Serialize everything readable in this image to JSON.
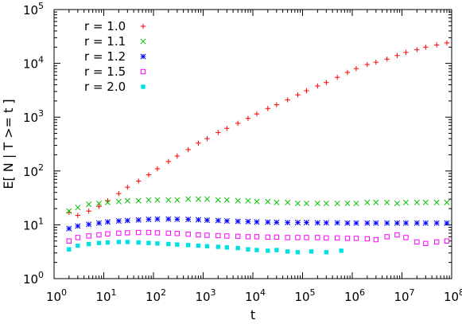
{
  "chart_data": {
    "type": "scatter",
    "title": "",
    "xlabel": "t",
    "ylabel": "E[ N | T >= t ]",
    "x_scale": "log",
    "y_scale": "log",
    "xlim": [
      1,
      100000000
    ],
    "ylim": [
      1,
      100000
    ],
    "x_ticks": [
      {
        "value": 1,
        "base": "10",
        "exp": "0"
      },
      {
        "value": 10,
        "base": "10",
        "exp": "1"
      },
      {
        "value": 100,
        "base": "10",
        "exp": "2"
      },
      {
        "value": 1000,
        "base": "10",
        "exp": "3"
      },
      {
        "value": 10000,
        "base": "10",
        "exp": "4"
      },
      {
        "value": 100000,
        "base": "10",
        "exp": "5"
      },
      {
        "value": 1000000,
        "base": "10",
        "exp": "6"
      },
      {
        "value": 10000000,
        "base": "10",
        "exp": "7"
      },
      {
        "value": 100000000,
        "base": "10",
        "exp": "8"
      }
    ],
    "y_ticks": [
      {
        "value": 1,
        "base": "10",
        "exp": "0"
      },
      {
        "value": 10,
        "base": "10",
        "exp": "1"
      },
      {
        "value": 100,
        "base": "10",
        "exp": "2"
      },
      {
        "value": 1000,
        "base": "10",
        "exp": "3"
      },
      {
        "value": 10000,
        "base": "10",
        "exp": "4"
      },
      {
        "value": 100000,
        "base": "10",
        "exp": "5"
      }
    ],
    "grid": false,
    "legend_position": "top-left",
    "series": [
      {
        "name": "r = 1.0",
        "marker": "plus",
        "color": "#ff0000",
        "points": [
          [
            2,
            17
          ],
          [
            3,
            15
          ],
          [
            5,
            18
          ],
          [
            8,
            22
          ],
          [
            12,
            28
          ],
          [
            20,
            38
          ],
          [
            30,
            50
          ],
          [
            50,
            65
          ],
          [
            80,
            85
          ],
          [
            120,
            110
          ],
          [
            200,
            150
          ],
          [
            300,
            190
          ],
          [
            500,
            250
          ],
          [
            800,
            330
          ],
          [
            1200,
            400
          ],
          [
            2000,
            520
          ],
          [
            3000,
            620
          ],
          [
            5000,
            770
          ],
          [
            8000,
            950
          ],
          [
            12000,
            1150
          ],
          [
            20000,
            1450
          ],
          [
            30000,
            1700
          ],
          [
            50000,
            2100
          ],
          [
            80000,
            2600
          ],
          [
            120000,
            3100
          ],
          [
            200000,
            3800
          ],
          [
            300000,
            4400
          ],
          [
            500000,
            5500
          ],
          [
            800000,
            6800
          ],
          [
            1200000,
            8000
          ],
          [
            2000000,
            9500
          ],
          [
            3000000,
            10500
          ],
          [
            5000000,
            12000
          ],
          [
            8000000,
            14000
          ],
          [
            12000000,
            16000
          ],
          [
            20000000,
            18000
          ],
          [
            30000000,
            20000
          ],
          [
            50000000,
            22000
          ],
          [
            80000000,
            24000
          ]
        ]
      },
      {
        "name": "r = 1.1",
        "marker": "cross",
        "color": "#00c000",
        "points": [
          [
            2,
            18
          ],
          [
            3,
            21
          ],
          [
            5,
            24
          ],
          [
            8,
            25
          ],
          [
            12,
            26
          ],
          [
            20,
            27
          ],
          [
            30,
            28
          ],
          [
            50,
            28
          ],
          [
            80,
            29
          ],
          [
            120,
            29
          ],
          [
            200,
            29
          ],
          [
            300,
            29
          ],
          [
            500,
            30
          ],
          [
            800,
            30
          ],
          [
            1200,
            30
          ],
          [
            2000,
            29
          ],
          [
            3000,
            29
          ],
          [
            5000,
            28
          ],
          [
            8000,
            28
          ],
          [
            12000,
            27
          ],
          [
            20000,
            27
          ],
          [
            30000,
            26
          ],
          [
            50000,
            26
          ],
          [
            80000,
            25
          ],
          [
            120000,
            25
          ],
          [
            200000,
            25
          ],
          [
            300000,
            25
          ],
          [
            500000,
            25
          ],
          [
            800000,
            25
          ],
          [
            1200000,
            25
          ],
          [
            2000000,
            26
          ],
          [
            3000000,
            26
          ],
          [
            5000000,
            26
          ],
          [
            8000000,
            25
          ],
          [
            12000000,
            26
          ],
          [
            20000000,
            26
          ],
          [
            30000000,
            26
          ],
          [
            50000000,
            26
          ],
          [
            80000000,
            26
          ]
        ]
      },
      {
        "name": "r = 1.2",
        "marker": "star",
        "color": "#0000ff",
        "points": [
          [
            2,
            8.5
          ],
          [
            3,
            9.5
          ],
          [
            5,
            10.2
          ],
          [
            8,
            10.8
          ],
          [
            12,
            11.3
          ],
          [
            20,
            11.8
          ],
          [
            30,
            12
          ],
          [
            50,
            12.3
          ],
          [
            80,
            12.6
          ],
          [
            120,
            12.8
          ],
          [
            200,
            12.8
          ],
          [
            300,
            12.7
          ],
          [
            500,
            12.6
          ],
          [
            800,
            12.4
          ],
          [
            1200,
            12.2
          ],
          [
            2000,
            12
          ],
          [
            3000,
            11.8
          ],
          [
            5000,
            11.6
          ],
          [
            8000,
            11.5
          ],
          [
            12000,
            11.3
          ],
          [
            20000,
            11.2
          ],
          [
            30000,
            11.1
          ],
          [
            50000,
            11
          ],
          [
            80000,
            11
          ],
          [
            120000,
            11
          ],
          [
            200000,
            10.9
          ],
          [
            300000,
            10.9
          ],
          [
            500000,
            10.9
          ],
          [
            800000,
            10.8
          ],
          [
            1200000,
            10.8
          ],
          [
            2000000,
            10.8
          ],
          [
            3000000,
            10.8
          ],
          [
            5000000,
            10.8
          ],
          [
            8000000,
            10.8
          ],
          [
            12000000,
            10.8
          ],
          [
            20000000,
            10.8
          ],
          [
            30000000,
            10.8
          ],
          [
            50000000,
            10.8
          ],
          [
            80000000,
            10.8
          ]
        ]
      },
      {
        "name": "r = 1.5",
        "marker": "square-open",
        "color": "#ff00ff",
        "points": [
          [
            2,
            5
          ],
          [
            3,
            5.8
          ],
          [
            5,
            6.2
          ],
          [
            8,
            6.5
          ],
          [
            12,
            6.8
          ],
          [
            20,
            7
          ],
          [
            30,
            7.1
          ],
          [
            50,
            7.2
          ],
          [
            80,
            7.2
          ],
          [
            120,
            7.1
          ],
          [
            200,
            7
          ],
          [
            300,
            6.9
          ],
          [
            500,
            6.7
          ],
          [
            800,
            6.5
          ],
          [
            1200,
            6.4
          ],
          [
            2000,
            6.3
          ],
          [
            3000,
            6.2
          ],
          [
            5000,
            6.1
          ],
          [
            8000,
            6
          ],
          [
            12000,
            6
          ],
          [
            20000,
            5.9
          ],
          [
            30000,
            5.9
          ],
          [
            50000,
            5.8
          ],
          [
            80000,
            5.8
          ],
          [
            120000,
            5.8
          ],
          [
            200000,
            5.8
          ],
          [
            300000,
            5.7
          ],
          [
            500000,
            5.7
          ],
          [
            800000,
            5.6
          ],
          [
            1200000,
            5.6
          ],
          [
            2000000,
            5.5
          ],
          [
            3000000,
            5.3
          ],
          [
            5000000,
            6
          ],
          [
            8000000,
            6.5
          ],
          [
            12000000,
            5.8
          ],
          [
            20000000,
            4.8
          ],
          [
            30000000,
            4.5
          ],
          [
            50000000,
            4.8
          ],
          [
            80000000,
            5
          ]
        ]
      },
      {
        "name": "r = 2.0",
        "marker": "square-filled",
        "color": "#00e0e0",
        "points": [
          [
            2,
            3.5
          ],
          [
            3,
            4.1
          ],
          [
            5,
            4.4
          ],
          [
            8,
            4.6
          ],
          [
            12,
            4.7
          ],
          [
            20,
            4.8
          ],
          [
            30,
            4.8
          ],
          [
            50,
            4.7
          ],
          [
            80,
            4.6
          ],
          [
            120,
            4.5
          ],
          [
            200,
            4.4
          ],
          [
            300,
            4.3
          ],
          [
            500,
            4.2
          ],
          [
            800,
            4.1
          ],
          [
            1200,
            4
          ],
          [
            2000,
            3.9
          ],
          [
            3000,
            3.8
          ],
          [
            5000,
            3.7
          ],
          [
            8000,
            3.5
          ],
          [
            12000,
            3.4
          ],
          [
            20000,
            3.3
          ],
          [
            30000,
            3.4
          ],
          [
            50000,
            3.2
          ],
          [
            80000,
            3.1
          ],
          [
            150000,
            3.2
          ],
          [
            300000,
            3.1
          ],
          [
            600000,
            3.3
          ]
        ]
      }
    ]
  }
}
